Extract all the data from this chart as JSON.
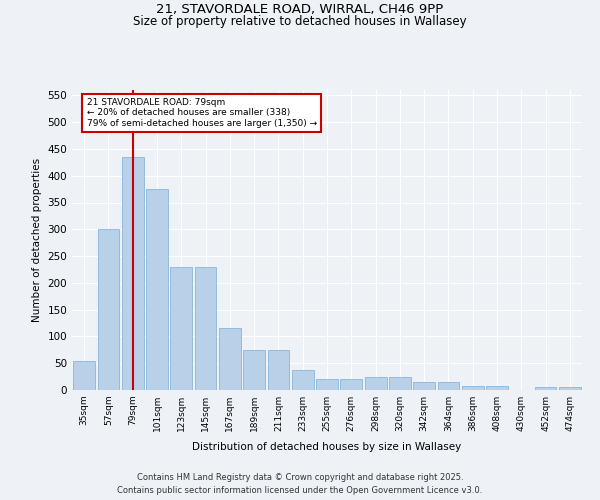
{
  "title_line1": "21, STAVORDALE ROAD, WIRRAL, CH46 9PP",
  "title_line2": "Size of property relative to detached houses in Wallasey",
  "xlabel": "Distribution of detached houses by size in Wallasey",
  "ylabel": "Number of detached properties",
  "categories": [
    "35sqm",
    "57sqm",
    "79sqm",
    "101sqm",
    "123sqm",
    "145sqm",
    "167sqm",
    "189sqm",
    "211sqm",
    "233sqm",
    "255sqm",
    "276sqm",
    "298sqm",
    "320sqm",
    "342sqm",
    "364sqm",
    "386sqm",
    "408sqm",
    "430sqm",
    "452sqm",
    "474sqm"
  ],
  "values": [
    55,
    300,
    435,
    375,
    230,
    230,
    115,
    75,
    75,
    38,
    20,
    20,
    25,
    25,
    15,
    15,
    8,
    8,
    0,
    5,
    5
  ],
  "bar_color": "#b8d0e8",
  "bar_edge_color": "#7aadd4",
  "highlight_bar_index": 2,
  "highlight_line_color": "#cc0000",
  "ylim": [
    0,
    560
  ],
  "yticks": [
    0,
    50,
    100,
    150,
    200,
    250,
    300,
    350,
    400,
    450,
    500,
    550
  ],
  "annotation_text": "21 STAVORDALE ROAD: 79sqm\n← 20% of detached houses are smaller (338)\n79% of semi-detached houses are larger (1,350) →",
  "annotation_box_color": "#cc0000",
  "background_color": "#eef2f7",
  "footer_line1": "Contains HM Land Registry data © Crown copyright and database right 2025.",
  "footer_line2": "Contains public sector information licensed under the Open Government Licence v3.0."
}
